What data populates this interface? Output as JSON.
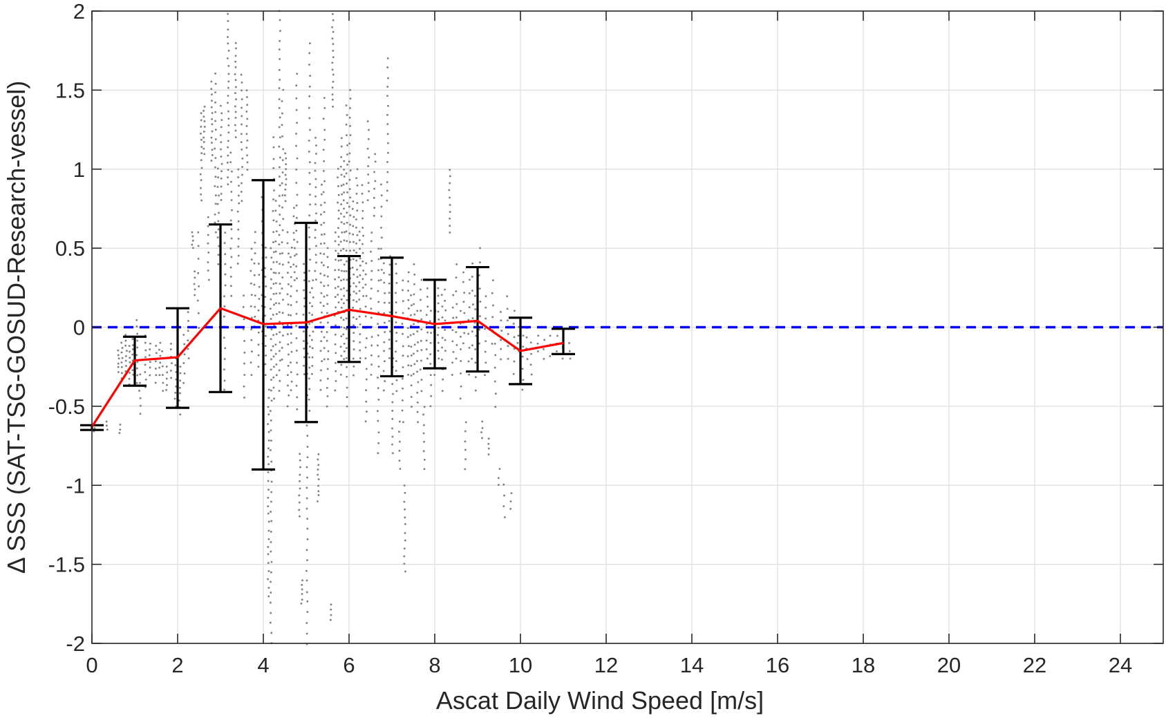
{
  "chart_data": {
    "type": "scatter",
    "title": "",
    "xlabel": "Ascat Daily Wind Speed [m/s]",
    "ylabel": "Δ SSS (SAT-TSG-GOSUD-Research-vessel)",
    "xlim": [
      0,
      25
    ],
    "ylim": [
      -2,
      2
    ],
    "x_ticks": [
      0,
      2,
      4,
      6,
      8,
      10,
      12,
      14,
      16,
      18,
      20,
      22,
      24
    ],
    "y_ticks": [
      -2,
      -1.5,
      -1,
      -0.5,
      0,
      0.5,
      1,
      1.5,
      2
    ],
    "x_tick_labels": [
      "0",
      "2",
      "4",
      "6",
      "8",
      "10",
      "12",
      "14",
      "16",
      "18",
      "20",
      "22",
      "24"
    ],
    "y_tick_labels": [
      "-2",
      "-1.5",
      "-1",
      "-0.5",
      "0",
      "0.5",
      "1",
      "1.5",
      "2"
    ],
    "grid": true,
    "legend": "none",
    "colors": {
      "scatter": "#808080",
      "mean_line": "#ff0000",
      "error_bars": "#000000",
      "zero_line": "#0000ff",
      "axes": "#262626",
      "grid": "#dcdcdc"
    },
    "reference_line": {
      "y": 0,
      "style": "dashed"
    },
    "mean_line": {
      "x": [
        0,
        1,
        2,
        3,
        4,
        5,
        6,
        7,
        8,
        9,
        10,
        11
      ],
      "y": [
        -0.63,
        -0.21,
        -0.19,
        0.12,
        0.02,
        0.03,
        0.11,
        0.07,
        0.02,
        0.04,
        -0.15,
        -0.1
      ]
    },
    "error_bars": {
      "x": [
        0,
        1,
        2,
        3,
        4,
        5,
        6,
        7,
        8,
        9,
        10,
        11
      ],
      "lower": [
        -0.65,
        -0.37,
        -0.51,
        -0.41,
        -0.9,
        -0.6,
        -0.22,
        -0.31,
        -0.26,
        -0.28,
        -0.36,
        -0.17
      ],
      "upper": [
        -0.62,
        -0.06,
        0.12,
        0.65,
        0.93,
        0.66,
        0.45,
        0.44,
        0.3,
        0.38,
        0.06,
        -0.01
      ]
    },
    "scatter_columns": [
      {
        "x": 0.05,
        "y_min": -0.66,
        "y_max": -0.6,
        "n": 4
      },
      {
        "x": 0.35,
        "y_min": -0.65,
        "y_max": -0.6,
        "n": 3
      },
      {
        "x": 0.65,
        "y_min": -0.67,
        "y_max": -0.62,
        "n": 3
      },
      {
        "x": 0.62,
        "y_min": -0.28,
        "y_max": -0.15,
        "n": 6
      },
      {
        "x": 0.7,
        "y_min": -0.32,
        "y_max": -0.1,
        "n": 8
      },
      {
        "x": 0.8,
        "y_min": -0.28,
        "y_max": -0.05,
        "n": 8
      },
      {
        "x": 0.88,
        "y_min": -0.36,
        "y_max": -0.12,
        "n": 8
      },
      {
        "x": 0.95,
        "y_min": -0.3,
        "y_max": -0.08,
        "n": 8
      },
      {
        "x": 1.05,
        "y_min": -0.35,
        "y_max": 0.05,
        "n": 10
      },
      {
        "x": 1.12,
        "y_min": -0.55,
        "y_max": -0.3,
        "n": 6
      },
      {
        "x": 1.25,
        "y_min": -0.38,
        "y_max": -0.05,
        "n": 8
      },
      {
        "x": 1.35,
        "y_min": -0.3,
        "y_max": -0.1,
        "n": 6
      },
      {
        "x": 1.5,
        "y_min": -0.35,
        "y_max": -0.12,
        "n": 6
      },
      {
        "x": 1.58,
        "y_min": -0.3,
        "y_max": -0.1,
        "n": 6
      },
      {
        "x": 1.65,
        "y_min": -0.4,
        "y_max": -0.15,
        "n": 6
      },
      {
        "x": 1.75,
        "y_min": -0.4,
        "y_max": -0.25,
        "n": 5
      },
      {
        "x": 1.85,
        "y_min": -0.32,
        "y_max": -0.1,
        "n": 6
      },
      {
        "x": 1.95,
        "y_min": -0.5,
        "y_max": -0.2,
        "n": 8
      },
      {
        "x": 2.05,
        "y_min": -0.55,
        "y_max": -0.25,
        "n": 8
      },
      {
        "x": 2.15,
        "y_min": -0.35,
        "y_max": -0.05,
        "n": 6
      },
      {
        "x": 2.25,
        "y_min": -0.2,
        "y_max": 0.1,
        "n": 6
      },
      {
        "x": 2.35,
        "y_min": 0.5,
        "y_max": 0.6,
        "n": 5
      },
      {
        "x": 2.4,
        "y_min": 0.2,
        "y_max": 0.35,
        "n": 5
      },
      {
        "x": 2.48,
        "y_min": 0.0,
        "y_max": 0.6,
        "n": 8
      },
      {
        "x": 2.55,
        "y_min": 0.8,
        "y_max": 1.35,
        "n": 14
      },
      {
        "x": 2.62,
        "y_min": 1.1,
        "y_max": 1.4,
        "n": 10
      },
      {
        "x": 2.72,
        "y_min": 0.3,
        "y_max": 0.7,
        "n": 8
      },
      {
        "x": 2.8,
        "y_min": 1.05,
        "y_max": 1.55,
        "n": 14
      },
      {
        "x": 2.88,
        "y_min": 0.6,
        "y_max": 1.6,
        "n": 18
      },
      {
        "x": 2.95,
        "y_min": 0.4,
        "y_max": 1.0,
        "n": 12
      },
      {
        "x": 3.02,
        "y_min": 0.8,
        "y_max": 1.4,
        "n": 14
      },
      {
        "x": 3.1,
        "y_min": -0.4,
        "y_max": 0.6,
        "n": 16
      },
      {
        "x": 3.18,
        "y_min": 0.9,
        "y_max": 1.98,
        "n": 24
      },
      {
        "x": 3.25,
        "y_min": 0.2,
        "y_max": 1.1,
        "n": 16
      },
      {
        "x": 3.35,
        "y_min": 1.2,
        "y_max": 1.8,
        "n": 16
      },
      {
        "x": 3.42,
        "y_min": 0.4,
        "y_max": 1.0,
        "n": 12
      },
      {
        "x": 3.5,
        "y_min": 0.8,
        "y_max": 1.6,
        "n": 16
      },
      {
        "x": 3.55,
        "y_min": -0.45,
        "y_max": 0.2,
        "n": 10
      },
      {
        "x": 3.62,
        "y_min": 1.0,
        "y_max": 1.5,
        "n": 12
      },
      {
        "x": 3.72,
        "y_min": -0.3,
        "y_max": 0.5,
        "n": 12
      },
      {
        "x": 3.8,
        "y_min": 0.0,
        "y_max": 0.6,
        "n": 10
      },
      {
        "x": 3.9,
        "y_min": -0.25,
        "y_max": 0.4,
        "n": 10
      },
      {
        "x": 3.98,
        "y_min": -0.1,
        "y_max": 0.9,
        "n": 14
      },
      {
        "x": 4.05,
        "y_min": -0.3,
        "y_max": 0.5,
        "n": 14
      },
      {
        "x": 4.12,
        "y_min": -1.7,
        "y_max": -0.4,
        "n": 26
      },
      {
        "x": 4.18,
        "y_min": -2.0,
        "y_max": 0.5,
        "n": 40
      },
      {
        "x": 4.24,
        "y_min": -0.45,
        "y_max": 1.2,
        "n": 26
      },
      {
        "x": 4.3,
        "y_min": -0.3,
        "y_max": 0.8,
        "n": 18
      },
      {
        "x": 4.38,
        "y_min": -0.4,
        "y_max": 2.0,
        "n": 40
      },
      {
        "x": 4.45,
        "y_min": -0.2,
        "y_max": 1.5,
        "n": 24
      },
      {
        "x": 4.52,
        "y_min": 0.8,
        "y_max": 1.1,
        "n": 10
      },
      {
        "x": 4.58,
        "y_min": -0.5,
        "y_max": 0.6,
        "n": 18
      },
      {
        "x": 4.65,
        "y_min": -0.4,
        "y_max": 0.5,
        "n": 16
      },
      {
        "x": 4.72,
        "y_min": 0.3,
        "y_max": 0.75,
        "n": 10
      },
      {
        "x": 4.78,
        "y_min": -0.6,
        "y_max": 1.6,
        "n": 30
      },
      {
        "x": 4.85,
        "y_min": -1.2,
        "y_max": -0.8,
        "n": 10
      },
      {
        "x": 4.9,
        "y_min": -1.75,
        "y_max": -1.6,
        "n": 6
      },
      {
        "x": 4.95,
        "y_min": -0.3,
        "y_max": 0.4,
        "n": 14
      },
      {
        "x": 5.02,
        "y_min": -2.0,
        "y_max": -0.1,
        "n": 30
      },
      {
        "x": 5.08,
        "y_min": -0.6,
        "y_max": 1.8,
        "n": 36
      },
      {
        "x": 5.15,
        "y_min": -0.3,
        "y_max": 0.3,
        "n": 12
      },
      {
        "x": 5.22,
        "y_min": 0.3,
        "y_max": 1.2,
        "n": 18
      },
      {
        "x": 5.28,
        "y_min": -1.1,
        "y_max": -0.8,
        "n": 10
      },
      {
        "x": 5.35,
        "y_min": -0.4,
        "y_max": 0.9,
        "n": 22
      },
      {
        "x": 5.42,
        "y_min": -0.2,
        "y_max": 1.45,
        "n": 26
      },
      {
        "x": 5.5,
        "y_min": -0.5,
        "y_max": 0.5,
        "n": 18
      },
      {
        "x": 5.58,
        "y_min": -1.85,
        "y_max": -1.75,
        "n": 4
      },
      {
        "x": 5.62,
        "y_min": 1.4,
        "y_max": 1.98,
        "n": 16
      },
      {
        "x": 5.68,
        "y_min": -0.4,
        "y_max": 0.6,
        "n": 18
      },
      {
        "x": 5.75,
        "y_min": 0.1,
        "y_max": 1.0,
        "n": 18
      },
      {
        "x": 5.82,
        "y_min": -0.3,
        "y_max": 1.2,
        "n": 26
      },
      {
        "x": 5.88,
        "y_min": -0.2,
        "y_max": 1.05,
        "n": 26
      },
      {
        "x": 5.95,
        "y_min": -0.5,
        "y_max": 1.4,
        "n": 32
      },
      {
        "x": 6.02,
        "y_min": 0.2,
        "y_max": 1.5,
        "n": 24
      },
      {
        "x": 6.1,
        "y_min": -0.3,
        "y_max": 0.8,
        "n": 22
      },
      {
        "x": 6.18,
        "y_min": 0.0,
        "y_max": 1.0,
        "n": 20
      },
      {
        "x": 6.25,
        "y_min": -0.2,
        "y_max": 0.6,
        "n": 16
      },
      {
        "x": 6.32,
        "y_min": 0.2,
        "y_max": 0.9,
        "n": 14
      },
      {
        "x": 6.4,
        "y_min": -0.6,
        "y_max": 0.4,
        "n": 16
      },
      {
        "x": 6.45,
        "y_min": 0.8,
        "y_max": 1.3,
        "n": 10
      },
      {
        "x": 6.52,
        "y_min": -0.3,
        "y_max": 0.6,
        "n": 16
      },
      {
        "x": 6.6,
        "y_min": 0.7,
        "y_max": 1.1,
        "n": 8
      },
      {
        "x": 6.68,
        "y_min": -0.8,
        "y_max": 0.5,
        "n": 20
      },
      {
        "x": 6.75,
        "y_min": 0.3,
        "y_max": 0.9,
        "n": 10
      },
      {
        "x": 6.82,
        "y_min": -0.4,
        "y_max": 0.4,
        "n": 14
      },
      {
        "x": 6.9,
        "y_min": 0.8,
        "y_max": 1.7,
        "n": 16
      },
      {
        "x": 6.95,
        "y_min": -0.2,
        "y_max": 0.45,
        "n": 12
      },
      {
        "x": 7.02,
        "y_min": -0.8,
        "y_max": -0.2,
        "n": 12
      },
      {
        "x": 7.1,
        "y_min": -0.4,
        "y_max": 0.4,
        "n": 14
      },
      {
        "x": 7.18,
        "y_min": -0.9,
        "y_max": -0.6,
        "n": 6
      },
      {
        "x": 7.25,
        "y_min": -0.6,
        "y_max": 0.3,
        "n": 14
      },
      {
        "x": 7.3,
        "y_min": -1.55,
        "y_max": -1.0,
        "n": 12
      },
      {
        "x": 7.38,
        "y_min": -0.3,
        "y_max": 0.35,
        "n": 12
      },
      {
        "x": 7.45,
        "y_min": -0.5,
        "y_max": 0.2,
        "n": 12
      },
      {
        "x": 7.52,
        "y_min": -0.3,
        "y_max": 0.4,
        "n": 12
      },
      {
        "x": 7.6,
        "y_min": -0.6,
        "y_max": 0.1,
        "n": 12
      },
      {
        "x": 7.68,
        "y_min": -0.4,
        "y_max": 0.3,
        "n": 12
      },
      {
        "x": 7.75,
        "y_min": -0.9,
        "y_max": -0.5,
        "n": 8
      },
      {
        "x": 7.82,
        "y_min": -0.2,
        "y_max": 0.3,
        "n": 10
      },
      {
        "x": 7.9,
        "y_min": -0.5,
        "y_max": 0.1,
        "n": 10
      },
      {
        "x": 8.0,
        "y_min": -0.3,
        "y_max": 0.3,
        "n": 10
      },
      {
        "x": 8.08,
        "y_min": -0.2,
        "y_max": 0.25,
        "n": 10
      },
      {
        "x": 8.18,
        "y_min": -0.4,
        "y_max": 0.2,
        "n": 10
      },
      {
        "x": 8.25,
        "y_min": -0.15,
        "y_max": 0.3,
        "n": 8
      },
      {
        "x": 8.35,
        "y_min": 0.6,
        "y_max": 1.0,
        "n": 10
      },
      {
        "x": 8.42,
        "y_min": -0.3,
        "y_max": 0.2,
        "n": 8
      },
      {
        "x": 8.5,
        "y_min": -0.2,
        "y_max": 0.4,
        "n": 8
      },
      {
        "x": 8.6,
        "y_min": -0.45,
        "y_max": 0.1,
        "n": 8
      },
      {
        "x": 8.68,
        "y_min": -0.1,
        "y_max": 0.35,
        "n": 8
      },
      {
        "x": 8.72,
        "y_min": -0.9,
        "y_max": -0.6,
        "n": 6
      },
      {
        "x": 8.8,
        "y_min": -0.3,
        "y_max": 0.3,
        "n": 8
      },
      {
        "x": 8.88,
        "y_min": -0.2,
        "y_max": 0.4,
        "n": 8
      },
      {
        "x": 8.95,
        "y_min": -0.4,
        "y_max": 0.2,
        "n": 8
      },
      {
        "x": 9.05,
        "y_min": -0.1,
        "y_max": 0.5,
        "n": 8
      },
      {
        "x": 9.1,
        "y_min": -0.7,
        "y_max": -0.6,
        "n": 4
      },
      {
        "x": 9.18,
        "y_min": -0.3,
        "y_max": 0.2,
        "n": 8
      },
      {
        "x": 9.25,
        "y_min": -0.8,
        "y_max": -0.7,
        "n": 4
      },
      {
        "x": 9.35,
        "y_min": -0.1,
        "y_max": 0.3,
        "n": 6
      },
      {
        "x": 9.42,
        "y_min": -0.5,
        "y_max": -0.1,
        "n": 6
      },
      {
        "x": 9.5,
        "y_min": -1.0,
        "y_max": -0.9,
        "n": 3
      },
      {
        "x": 9.55,
        "y_min": -0.2,
        "y_max": 0.1,
        "n": 6
      },
      {
        "x": 9.62,
        "y_min": -1.2,
        "y_max": -1.0,
        "n": 4
      },
      {
        "x": 9.7,
        "y_min": -0.2,
        "y_max": 0.2,
        "n": 6
      },
      {
        "x": 9.78,
        "y_min": -1.15,
        "y_max": -1.05,
        "n": 3
      },
      {
        "x": 9.85,
        "y_min": -0.3,
        "y_max": 0.1,
        "n": 6
      },
      {
        "x": 9.95,
        "y_min": -0.15,
        "y_max": 0.0,
        "n": 4
      },
      {
        "x": 10.05,
        "y_min": -0.4,
        "y_max": -0.05,
        "n": 6
      },
      {
        "x": 10.15,
        "y_min": -0.2,
        "y_max": 0.0,
        "n": 4
      },
      {
        "x": 10.25,
        "y_min": -0.3,
        "y_max": -0.1,
        "n": 4
      },
      {
        "x": 10.4,
        "y_min": -0.15,
        "y_max": -0.05,
        "n": 3
      },
      {
        "x": 10.55,
        "y_min": -0.2,
        "y_max": -0.08,
        "n": 3
      },
      {
        "x": 10.7,
        "y_min": -0.18,
        "y_max": -0.05,
        "n": 3
      },
      {
        "x": 10.85,
        "y_min": -0.15,
        "y_max": -0.05,
        "n": 3
      },
      {
        "x": 11.0,
        "y_min": -0.2,
        "y_max": -0.05,
        "n": 3
      },
      {
        "x": 11.15,
        "y_min": -0.2,
        "y_max": -0.1,
        "n": 3
      }
    ]
  }
}
